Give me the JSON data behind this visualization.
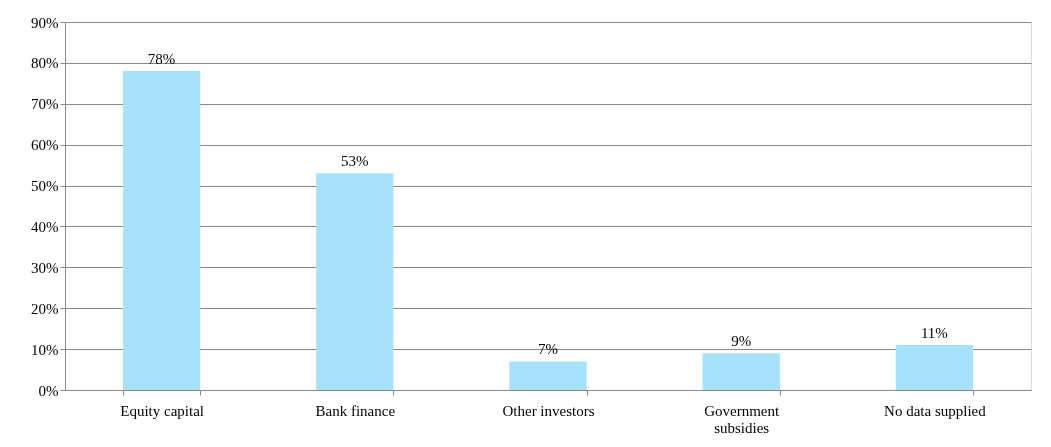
{
  "chart_data": {
    "type": "bar",
    "categories": [
      "Equity capital",
      "Bank finance",
      "Other investors",
      "Government\nsubsidies",
      "No data supplied"
    ],
    "values": [
      78,
      53,
      7,
      9,
      11
    ],
    "value_labels": [
      "78%",
      "53%",
      "7%",
      "9%",
      "11%"
    ],
    "color": "#a8e1fb",
    "ylim": [
      0,
      90
    ],
    "yticks": [
      {
        "value": 0,
        "label": "0%"
      },
      {
        "value": 10,
        "label": "10%"
      },
      {
        "value": 20,
        "label": "20%"
      },
      {
        "value": 30,
        "label": "30%"
      },
      {
        "value": 40,
        "label": "40%"
      },
      {
        "value": 50,
        "label": "50%"
      },
      {
        "value": 60,
        "label": "60%"
      },
      {
        "value": 70,
        "label": "70%"
      },
      {
        "value": 80,
        "label": "80%"
      },
      {
        "value": 90,
        "label": "90%"
      }
    ],
    "grid": "y"
  }
}
